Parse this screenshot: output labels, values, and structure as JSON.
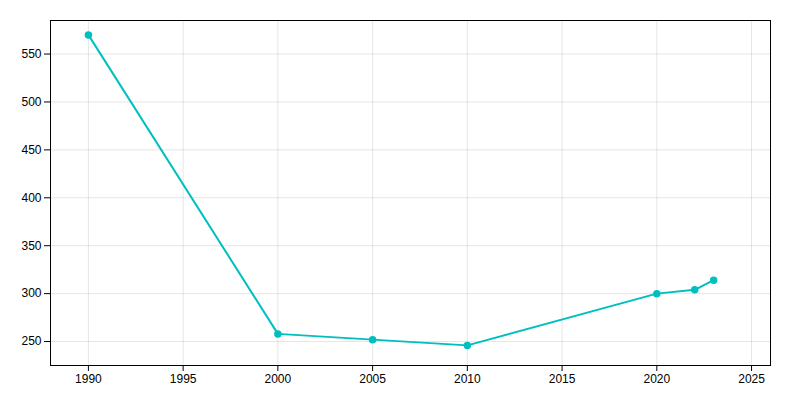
{
  "chart_data": {
    "type": "line",
    "x": [
      1990,
      2000,
      2005,
      2010,
      2020,
      2022,
      2023
    ],
    "values": [
      570,
      258,
      252,
      246,
      300,
      304,
      314
    ],
    "color": "#00BFBF",
    "marker": "o",
    "xlim": [
      1988,
      2026
    ],
    "ylim": [
      225,
      585
    ],
    "xticks": [
      1990,
      1995,
      2000,
      2005,
      2010,
      2015,
      2020,
      2025
    ],
    "yticks": [
      250,
      300,
      350,
      400,
      450,
      500,
      550
    ],
    "grid": true
  }
}
